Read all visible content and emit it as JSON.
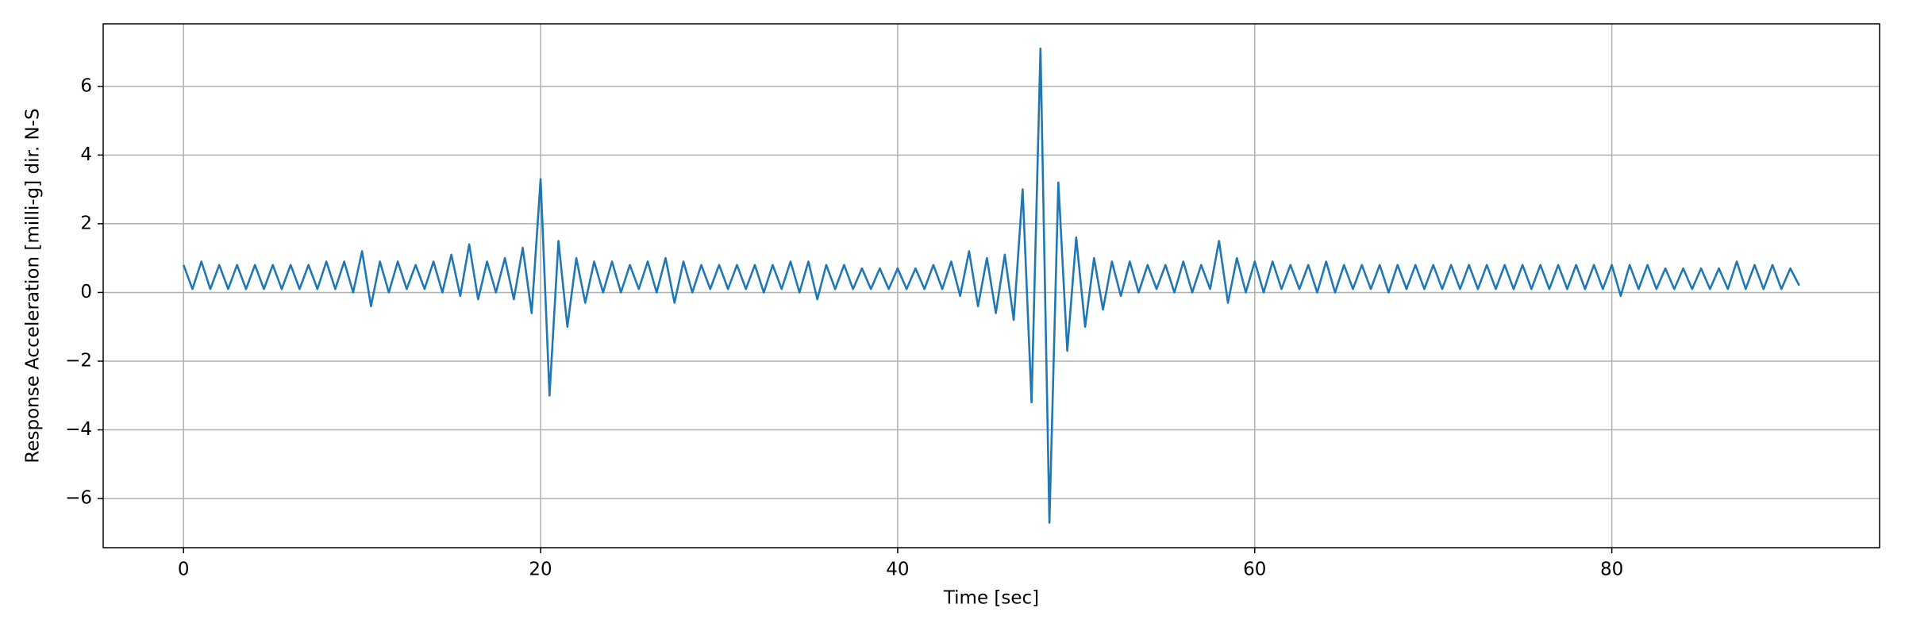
{
  "chart_data": {
    "type": "line",
    "xlabel": "Time [sec]",
    "ylabel": "Response Acceleration [milli-g] dir. N-S",
    "x": [
      0,
      0.5,
      1,
      1.5,
      2,
      2.5,
      3,
      3.5,
      4,
      4.5,
      5,
      5.5,
      6,
      6.5,
      7,
      7.5,
      8,
      8.5,
      9,
      9.5,
      10,
      10.5,
      11,
      11.5,
      12,
      12.5,
      13,
      13.5,
      14,
      14.5,
      15,
      15.5,
      16,
      16.5,
      17,
      17.5,
      18,
      18.5,
      19,
      19.5,
      20,
      20.5,
      21,
      21.5,
      22,
      22.5,
      23,
      23.5,
      24,
      24.5,
      25,
      25.5,
      26,
      26.5,
      27,
      27.5,
      28,
      28.5,
      29,
      29.5,
      30,
      30.5,
      31,
      31.5,
      32,
      32.5,
      33,
      33.5,
      34,
      34.5,
      35,
      35.5,
      36,
      36.5,
      37,
      37.5,
      38,
      38.5,
      39,
      39.5,
      40,
      40.5,
      41,
      41.5,
      42,
      42.5,
      43,
      43.5,
      44,
      44.5,
      45,
      45.5,
      46,
      46.5,
      47,
      47.5,
      48,
      48.5,
      49,
      49.5,
      50,
      50.5,
      51,
      51.5,
      52,
      52.5,
      53,
      53.5,
      54,
      54.5,
      55,
      55.5,
      56,
      56.5,
      57,
      57.5,
      58,
      58.5,
      59,
      59.5,
      60,
      60.5,
      61,
      61.5,
      62,
      62.5,
      63,
      63.5,
      64,
      64.5,
      65,
      65.5,
      66,
      66.5,
      67,
      67.5,
      68,
      68.5,
      69,
      69.5,
      70,
      70.5,
      71,
      71.5,
      72,
      72.5,
      73,
      73.5,
      74,
      74.5,
      75,
      75.5,
      76,
      76.5,
      77,
      77.5,
      78,
      78.5,
      79,
      79.5,
      80,
      80.5,
      81,
      81.5,
      82,
      82.5,
      83,
      83.5,
      84,
      84.5,
      85,
      85.5,
      86,
      86.5,
      87,
      87.5,
      88,
      88.5,
      89,
      89.5,
      90,
      90.5
    ],
    "series": [
      {
        "color": "#1f77b4",
        "values": [
          0.8,
          0.1,
          0.9,
          0.1,
          0.8,
          0.1,
          0.8,
          0.1,
          0.8,
          0.1,
          0.8,
          0.1,
          0.8,
          0.1,
          0.8,
          0.1,
          0.9,
          0.1,
          0.9,
          0.0,
          1.2,
          -0.4,
          0.9,
          0.0,
          0.9,
          0.1,
          0.8,
          0.1,
          0.9,
          0.0,
          1.1,
          -0.1,
          1.4,
          -0.2,
          0.9,
          0.0,
          1.0,
          -0.2,
          1.3,
          -0.6,
          3.3,
          -3.0,
          1.5,
          -1.0,
          1.0,
          -0.3,
          0.9,
          0.0,
          0.9,
          0.0,
          0.8,
          0.1,
          0.9,
          0.0,
          1.0,
          -0.3,
          0.9,
          0.0,
          0.8,
          0.1,
          0.8,
          0.1,
          0.8,
          0.1,
          0.8,
          0.0,
          0.8,
          0.1,
          0.9,
          0.0,
          0.9,
          -0.2,
          0.8,
          0.1,
          0.8,
          0.1,
          0.7,
          0.1,
          0.7,
          0.1,
          0.7,
          0.1,
          0.7,
          0.1,
          0.8,
          0.1,
          0.9,
          -0.1,
          1.2,
          -0.4,
          1.0,
          -0.6,
          1.1,
          -0.8,
          3.0,
          -3.2,
          7.1,
          -6.7,
          3.2,
          -1.7,
          1.6,
          -1.0,
          1.0,
          -0.5,
          0.9,
          -0.1,
          0.9,
          0.0,
          0.8,
          0.1,
          0.8,
          0.0,
          0.9,
          0.0,
          0.8,
          0.1,
          1.5,
          -0.3,
          1.0,
          0.0,
          0.9,
          0.0,
          0.9,
          0.1,
          0.8,
          0.1,
          0.8,
          0.0,
          0.9,
          0.0,
          0.8,
          0.1,
          0.8,
          0.1,
          0.8,
          0.0,
          0.8,
          0.1,
          0.8,
          0.1,
          0.8,
          0.1,
          0.8,
          0.1,
          0.8,
          0.1,
          0.8,
          0.1,
          0.8,
          0.1,
          0.8,
          0.1,
          0.8,
          0.1,
          0.8,
          0.1,
          0.8,
          0.1,
          0.8,
          0.1,
          0.8,
          -0.1,
          0.8,
          0.1,
          0.8,
          0.1,
          0.7,
          0.1,
          0.7,
          0.1,
          0.7,
          0.1,
          0.7,
          0.1,
          0.9,
          0.1,
          0.8,
          0.1,
          0.8,
          0.1,
          0.7,
          0.2
        ]
      }
    ],
    "xlim": [
      -4.5,
      95
    ],
    "ylim": [
      -7.43,
      7.82
    ],
    "xticks": [
      0,
      20,
      40,
      60,
      80
    ],
    "yticks": [
      {
        "value": -6,
        "label": "−6"
      },
      {
        "value": -4,
        "label": "−4"
      },
      {
        "value": -2,
        "label": "−2"
      },
      0,
      2,
      4,
      6
    ],
    "grid": true
  }
}
